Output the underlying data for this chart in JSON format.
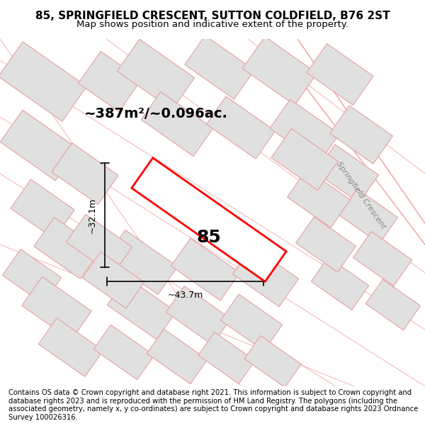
{
  "title": "85, SPRINGFIELD CRESCENT, SUTTON COLDFIELD, B76 2ST",
  "subtitle": "Map shows position and indicative extent of the property.",
  "area_text": "~387m²/~0.096ac.",
  "label_85": "85",
  "dim_width": "~43.7m",
  "dim_height": "~32.1m",
  "street_label": "Springfield Crescent",
  "footer": "Contains OS data © Crown copyright and database right 2021. This information is subject to Crown copyright and database rights 2023 and is reproduced with the permission of HM Land Registry. The polygons (including the associated geometry, namely x, y co-ordinates) are subject to Crown copyright and database rights 2023 Ordnance Survey 100026316.",
  "bg_color": "#f5f5f0",
  "map_bg": "#ffffff",
  "plot_color_fill": "#ffffff",
  "plot_color_edge": "#ff0000",
  "neighbor_fill": "#e8e8e8",
  "neighbor_edge": "#f0a0a0",
  "road_color": "#f0a0a0",
  "title_fontsize": 11,
  "subtitle_fontsize": 9.5,
  "footer_fontsize": 7.2
}
